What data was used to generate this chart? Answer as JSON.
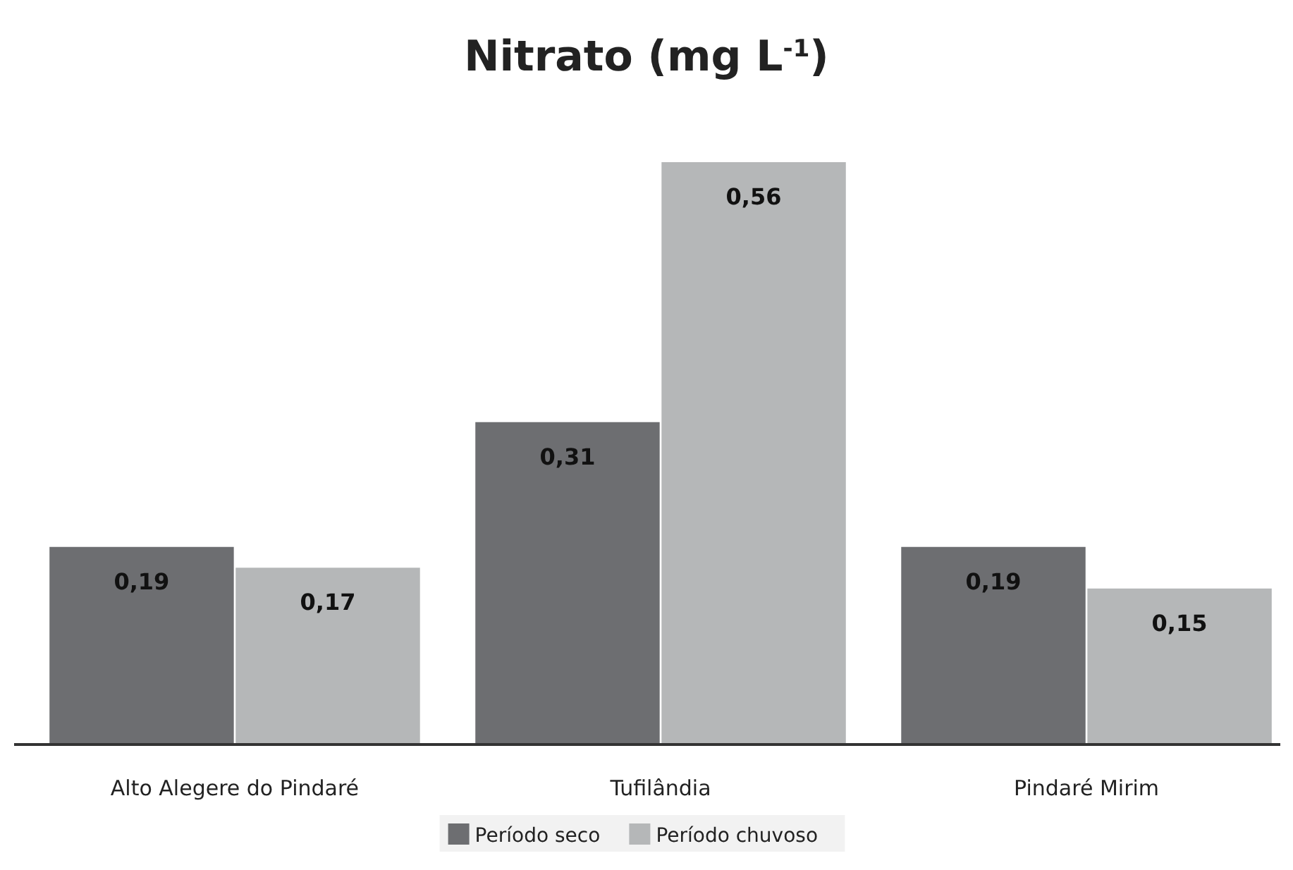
{
  "chart_data": {
    "type": "bar",
    "title": "Nitrato (mg L$^{-1}$)",
    "categories": [
      "Alto Alegere do Pindaré",
      "Tufilândia",
      "Pindaré Mirim"
    ],
    "series": [
      {
        "name": "Período seco",
        "color": "#6d6e71",
        "values": [
          0.19,
          0.31,
          0.19
        ],
        "value_labels": [
          "0,19",
          "0,31",
          "0,19"
        ]
      },
      {
        "name": "Período chuvoso",
        "color": "#b5b7b8",
        "values": [
          0.17,
          0.56,
          0.15
        ],
        "value_labels": [
          "0,17",
          "0,56",
          "0,15"
        ]
      }
    ],
    "legend": "bottom"
  }
}
